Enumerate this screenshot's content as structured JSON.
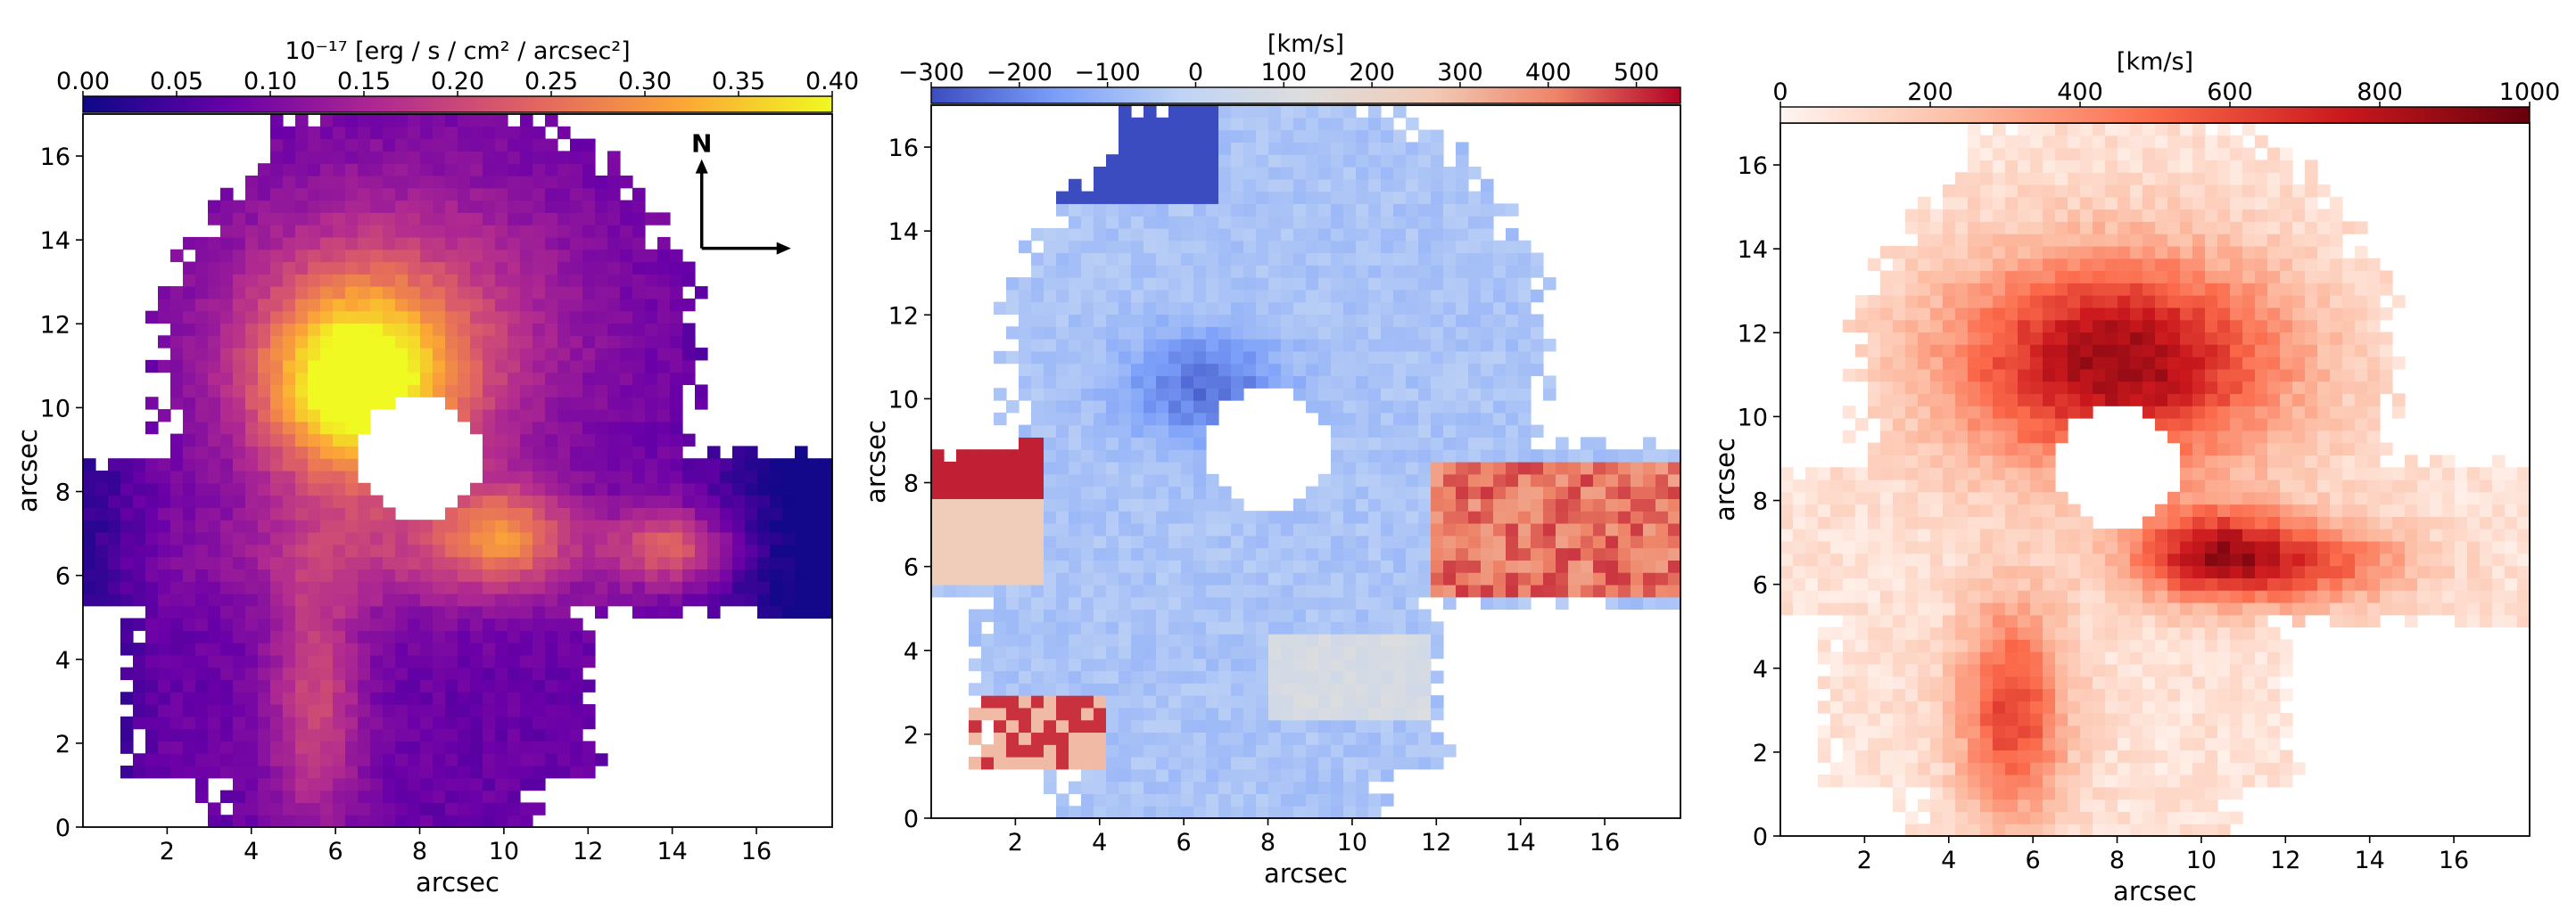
{
  "chart_data": [
    {
      "type": "heatmap",
      "panel": "flux",
      "colormap": "plasma",
      "colormap_colors": [
        "#0d0887",
        "#6a00a8",
        "#b12a90",
        "#e16462",
        "#fca636",
        "#f0f921"
      ],
      "colorbar": {
        "label": "10⁻¹⁷ [erg / s / cm² / arcsec²]",
        "range": [
          0,
          0.4
        ],
        "ticks": [
          "0.00",
          "0.05",
          "0.10",
          "0.15",
          "0.20",
          "0.25",
          "0.30",
          "0.35",
          "0.40"
        ]
      },
      "xlabel": "arcsec",
      "ylabel": "arcsec",
      "xlim": [
        0,
        17.8
      ],
      "ylim": [
        0,
        17
      ],
      "xticks": [
        "2",
        "4",
        "6",
        "8",
        "10",
        "12",
        "14",
        "16"
      ],
      "yticks": [
        "0",
        "2",
        "4",
        "6",
        "8",
        "10",
        "12",
        "14",
        "16"
      ],
      "masked_center": [
        8,
        8.8
      ],
      "peaks": [
        {
          "x": 6.5,
          "y": 10.5,
          "value": 0.38
        },
        {
          "x": 10,
          "y": 7,
          "value": 0.26
        },
        {
          "x": 14,
          "y": 6.7,
          "value": 0.25
        },
        {
          "x": 5.5,
          "y": 3,
          "value": 0.2
        }
      ],
      "compass": {
        "north": "N"
      }
    },
    {
      "type": "heatmap",
      "panel": "velocity",
      "colormap": "coolwarm",
      "colormap_colors": [
        "#3b4cc0",
        "#7b9ff9",
        "#c0d4f5",
        "#dddddd",
        "#f2cbb7",
        "#ee8468",
        "#b40426"
      ],
      "colorbar": {
        "label": "[km/s]",
        "range": [
          -300,
          550
        ],
        "ticks": [
          "−300",
          "−200",
          "−100",
          "0",
          "100",
          "200",
          "300",
          "400",
          "500"
        ]
      },
      "xlabel": "arcsec",
      "ylabel": "arcsec",
      "xlim": [
        0,
        17.8
      ],
      "ylim": [
        0,
        17
      ],
      "xticks": [
        "2",
        "4",
        "6",
        "8",
        "10",
        "12",
        "14",
        "16"
      ],
      "yticks": [
        "0",
        "2",
        "4",
        "6",
        "8",
        "10",
        "12",
        "14",
        "16"
      ],
      "masked_center": [
        8,
        8.8
      ]
    },
    {
      "type": "heatmap",
      "panel": "dispersion",
      "colormap": "Reds",
      "colormap_colors": [
        "#fff5f0",
        "#fcbba1",
        "#fb6a4a",
        "#cb181d",
        "#67000d"
      ],
      "colorbar": {
        "label": "[km/s]",
        "range": [
          0,
          1000
        ],
        "ticks": [
          "0",
          "200",
          "400",
          "600",
          "800",
          "1000"
        ]
      },
      "xlabel": "arcsec",
      "ylabel": "arcsec",
      "xlim": [
        0,
        17.8
      ],
      "ylim": [
        0,
        17
      ],
      "xticks": [
        "2",
        "4",
        "6",
        "8",
        "10",
        "12",
        "14",
        "16"
      ],
      "yticks": [
        "0",
        "2",
        "4",
        "6",
        "8",
        "10",
        "12",
        "14",
        "16"
      ],
      "masked_center": [
        8,
        8.8
      ]
    }
  ]
}
